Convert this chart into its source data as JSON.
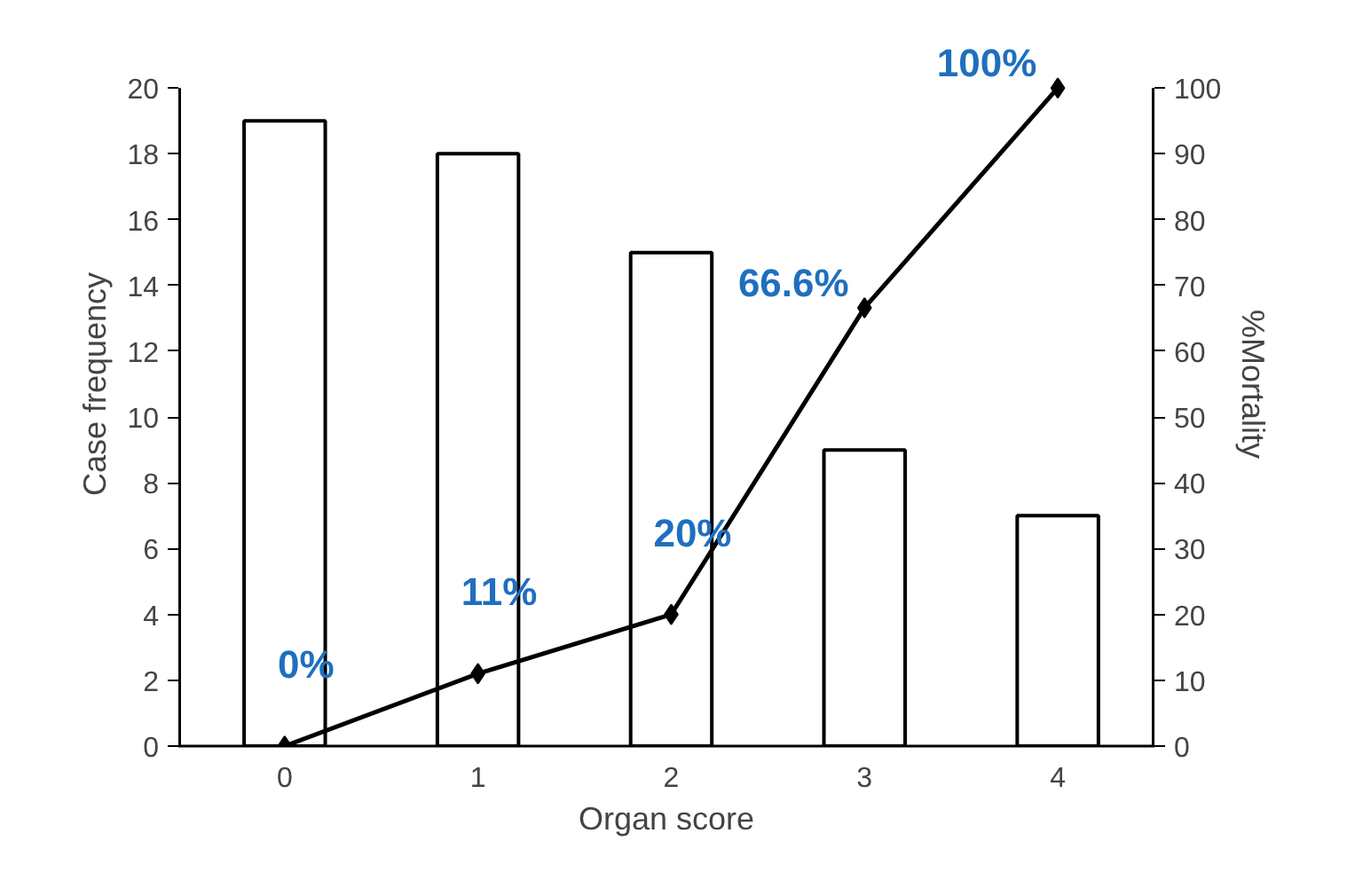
{
  "chart_data": {
    "type": "bar",
    "xlabel": "Organ score",
    "ylabel": "Case frequency",
    "y2label": "%Mortality",
    "categories": [
      "0",
      "1",
      "2",
      "3",
      "4"
    ],
    "ylim": [
      0,
      20
    ],
    "yticks": [
      0,
      2,
      4,
      6,
      8,
      10,
      12,
      14,
      16,
      18,
      20
    ],
    "y2lim": [
      0,
      100
    ],
    "y2ticks": [
      0,
      10,
      20,
      30,
      40,
      50,
      60,
      70,
      80,
      90,
      100
    ],
    "series": [
      {
        "type": "bar",
        "color": "#ffffff",
        "values": [
          19,
          18,
          15,
          9,
          7
        ]
      },
      {
        "type": "line",
        "axis": "y2",
        "color": "#000000",
        "marker": "diamond",
        "values": [
          0,
          11,
          20,
          66.6,
          100
        ],
        "value_labels": [
          "0%",
          "11%",
          "20%",
          "66.6%",
          "100%"
        ]
      }
    ]
  }
}
